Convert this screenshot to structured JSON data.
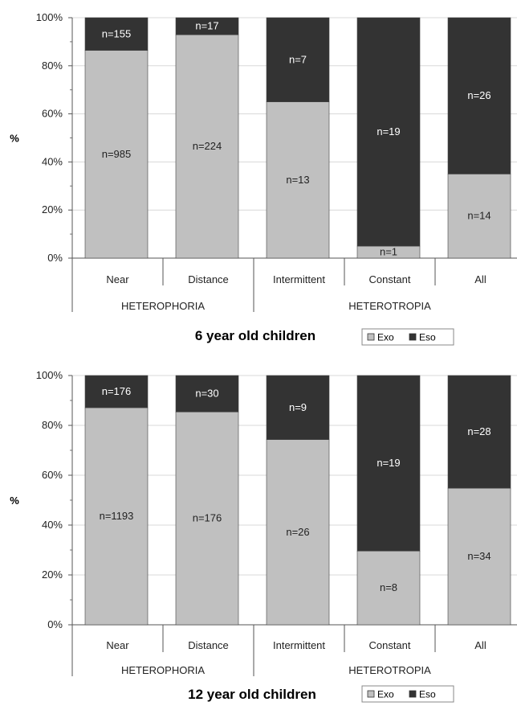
{
  "chart_data": [
    {
      "type": "bar",
      "stacked": true,
      "percent": true,
      "title": "6 year old children",
      "ylabel": "%",
      "ylim": [
        0,
        100
      ],
      "yticks": [
        "0%",
        "20%",
        "40%",
        "60%",
        "80%",
        "100%"
      ],
      "categories": [
        "Near",
        "Distance",
        "Intermittent",
        "Constant",
        "All"
      ],
      "groups": [
        {
          "label": "HETEROPHORIA",
          "categories": [
            "Near",
            "Distance"
          ]
        },
        {
          "label": "HETEROTROPIA",
          "categories": [
            "Intermittent",
            "Constant",
            "All"
          ]
        }
      ],
      "series": [
        {
          "name": "Exo",
          "color": "#c0c0c0",
          "values": [
            86.4,
            92.9,
            65.0,
            5.0,
            35.0
          ],
          "labels": [
            "n=985",
            "n=224",
            "n=13",
            "n=1",
            "n=14"
          ]
        },
        {
          "name": "Eso",
          "color": "#333333",
          "values": [
            13.6,
            7.1,
            35.0,
            95.0,
            65.0
          ],
          "labels": [
            "n=155",
            "n=17",
            "n=7",
            "n=19",
            "n=26"
          ]
        }
      ],
      "legend": "bottom-right",
      "grid": true
    },
    {
      "type": "bar",
      "stacked": true,
      "percent": true,
      "title": "12 year old children",
      "ylabel": "%",
      "ylim": [
        0,
        100
      ],
      "yticks": [
        "0%",
        "20%",
        "40%",
        "60%",
        "80%",
        "100%"
      ],
      "categories": [
        "Near",
        "Distance",
        "Intermittent",
        "Constant",
        "All"
      ],
      "groups": [
        {
          "label": "HETEROPHORIA",
          "categories": [
            "Near",
            "Distance"
          ]
        },
        {
          "label": "HETEROTROPIA",
          "categories": [
            "Intermittent",
            "Constant",
            "All"
          ]
        }
      ],
      "series": [
        {
          "name": "Exo",
          "color": "#c0c0c0",
          "values": [
            87.1,
            85.4,
            74.3,
            29.6,
            54.8
          ],
          "labels": [
            "n=1193",
            "n=176",
            "n=26",
            "n=8",
            "n=34"
          ]
        },
        {
          "name": "Eso",
          "color": "#333333",
          "values": [
            12.9,
            14.6,
            25.7,
            70.4,
            45.2
          ],
          "labels": [
            "n=176",
            "n=30",
            "n=9",
            "n=19",
            "n=28"
          ]
        }
      ],
      "legend": "bottom-right",
      "grid": true
    }
  ]
}
